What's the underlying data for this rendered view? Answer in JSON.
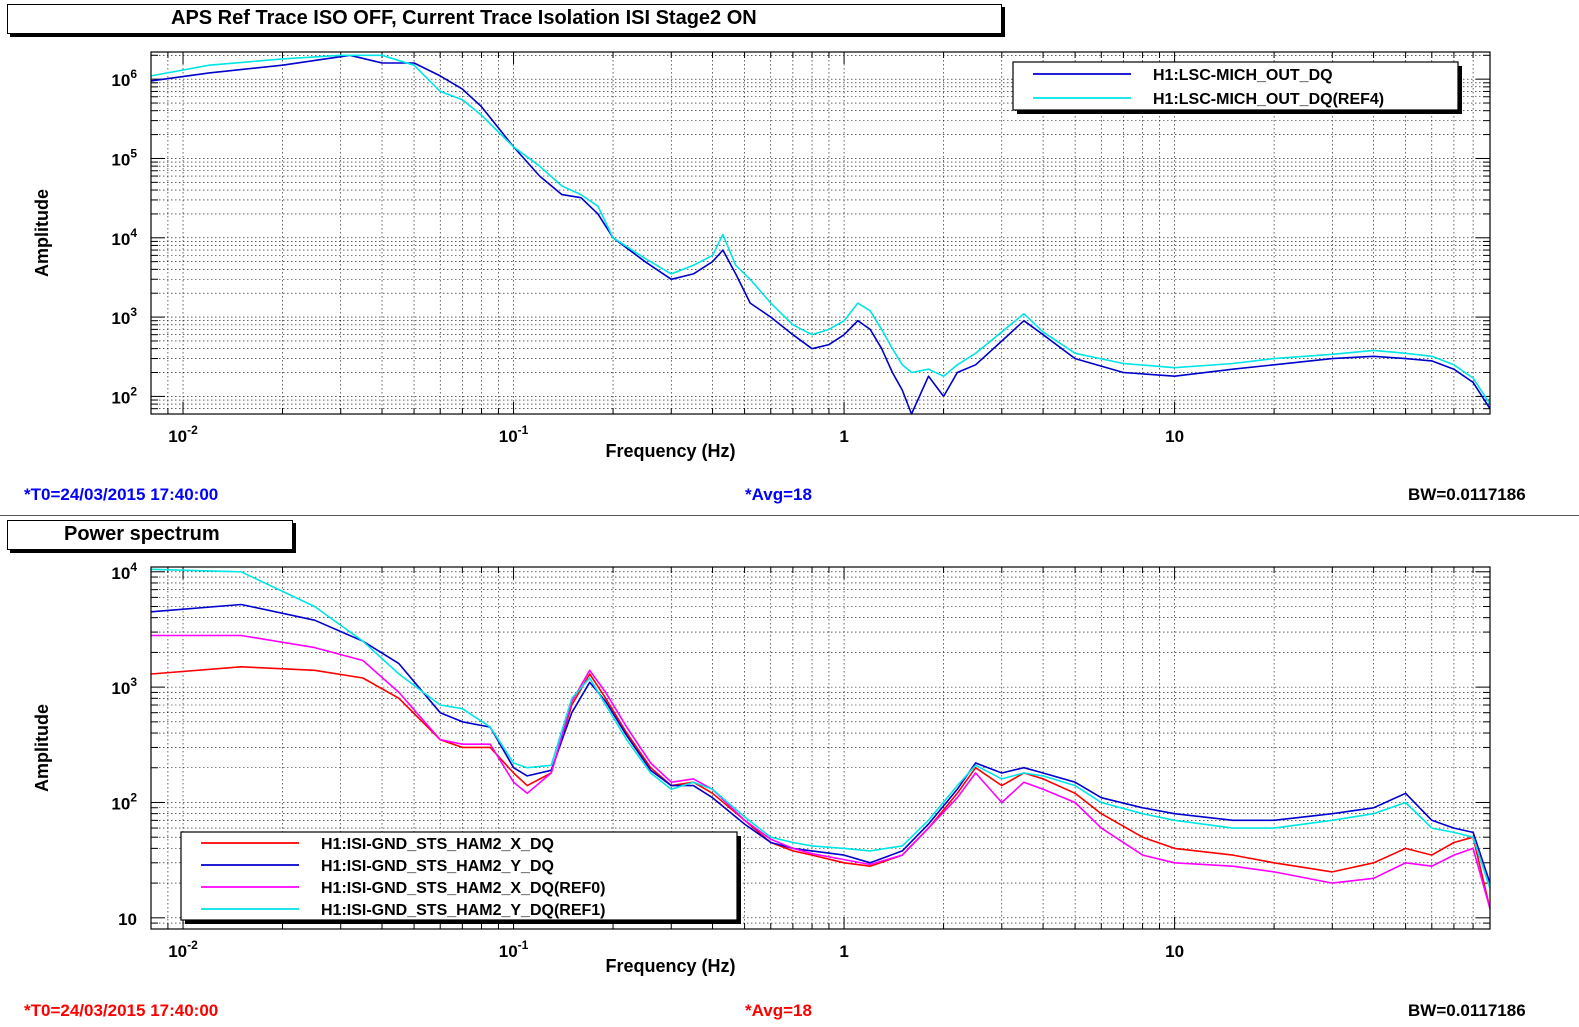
{
  "panels": [
    {
      "title": "APS Ref Trace ISO OFF, Current Trace Isolation ISI Stage2 ON",
      "info": {
        "t0": "*T0=24/03/2015 17:40:00",
        "avg": "*Avg=18",
        "bw": "BW=0.0117186",
        "color": "#0000ff"
      }
    },
    {
      "title": "Power spectrum",
      "info": {
        "t0": "*T0=24/03/2015 17:40:00",
        "avg": "*Avg=18",
        "bw": "BW=0.0117186",
        "color": "#ff0000"
      }
    }
  ],
  "chart_data": [
    {
      "type": "line",
      "title": "APS Ref Trace ISO OFF, Current Trace Isolation ISI Stage2 ON",
      "xlabel": "Frequency (Hz)",
      "ylabel": "Amplitude",
      "xscale": "log",
      "yscale": "log",
      "xlim": [
        0.008,
        90
      ],
      "ylim": [
        60,
        2200000
      ],
      "grid": true,
      "legend_position": "top-right",
      "x_ticks": [
        {
          "label": "10",
          "sup": "-2",
          "value": 0.01
        },
        {
          "label": "10",
          "sup": "-1",
          "value": 0.1
        },
        {
          "label": "1",
          "sup": "",
          "value": 1
        },
        {
          "label": "10",
          "sup": "",
          "value": 10
        }
      ],
      "y_ticks": [
        {
          "label": "10",
          "sup": "2",
          "value": 100
        },
        {
          "label": "10",
          "sup": "3",
          "value": 1000
        },
        {
          "label": "10",
          "sup": "4",
          "value": 10000
        },
        {
          "label": "10",
          "sup": "5",
          "value": 100000
        },
        {
          "label": "10",
          "sup": "6",
          "value": 1000000
        }
      ],
      "series": [
        {
          "name": "H1:LSC-MICH_OUT_DQ",
          "color": "#0000cc",
          "x": [
            0.008,
            0.012,
            0.02,
            0.032,
            0.04,
            0.05,
            0.06,
            0.07,
            0.08,
            0.1,
            0.12,
            0.14,
            0.16,
            0.18,
            0.2,
            0.25,
            0.3,
            0.35,
            0.4,
            0.43,
            0.47,
            0.52,
            0.6,
            0.7,
            0.8,
            0.9,
            1.0,
            1.1,
            1.2,
            1.3,
            1.4,
            1.5,
            1.6,
            1.8,
            2.0,
            2.2,
            2.5,
            3.0,
            3.5,
            4.0,
            5.0,
            7.0,
            10.0,
            15.0,
            20.0,
            30.0,
            40.0,
            50.0,
            60.0,
            70.0,
            80.0,
            90.0
          ],
          "y": [
            950000,
            1200000,
            1500000,
            2000000,
            1600000,
            1600000,
            1100000,
            750000,
            450000,
            140000,
            60000,
            35000,
            32000,
            20000,
            10000,
            5000,
            3000,
            3500,
            5000,
            7000,
            3500,
            1500,
            1000,
            600,
            400,
            450,
            600,
            900,
            700,
            400,
            200,
            120,
            60,
            180,
            100,
            200,
            250,
            500,
            900,
            600,
            300,
            200,
            180,
            220,
            250,
            300,
            320,
            300,
            280,
            220,
            150,
            70
          ]
        },
        {
          "name": "H1:LSC-MICH_OUT_DQ(REF4)",
          "color": "#00e5e5",
          "x": [
            0.008,
            0.012,
            0.02,
            0.03,
            0.04,
            0.05,
            0.06,
            0.07,
            0.08,
            0.1,
            0.12,
            0.14,
            0.16,
            0.18,
            0.2,
            0.25,
            0.3,
            0.35,
            0.4,
            0.43,
            0.47,
            0.52,
            0.6,
            0.7,
            0.8,
            0.9,
            1.0,
            1.1,
            1.2,
            1.3,
            1.4,
            1.5,
            1.6,
            1.8,
            2.0,
            2.2,
            2.5,
            3.0,
            3.5,
            4.0,
            5.0,
            7.0,
            10.0,
            15.0,
            20.0,
            30.0,
            40.0,
            50.0,
            60.0,
            70.0,
            80.0,
            90.0
          ],
          "y": [
            1100000,
            1500000,
            1800000,
            2000000,
            2000000,
            1500000,
            700000,
            550000,
            350000,
            140000,
            80000,
            45000,
            35000,
            25000,
            10000,
            5500,
            3500,
            4500,
            6000,
            11000,
            4500,
            3000,
            1500,
            800,
            600,
            700,
            900,
            1500,
            1200,
            700,
            400,
            250,
            200,
            220,
            180,
            250,
            350,
            650,
            1100,
            650,
            350,
            260,
            230,
            260,
            300,
            340,
            380,
            350,
            320,
            250,
            170,
            80
          ]
        }
      ]
    },
    {
      "type": "line",
      "title": "Power spectrum",
      "xlabel": "Frequency (Hz)",
      "ylabel": "Amplitude",
      "xscale": "log",
      "yscale": "log",
      "xlim": [
        0.008,
        90
      ],
      "ylim": [
        8,
        11000
      ],
      "grid": true,
      "legend_position": "bottom-left",
      "x_ticks": [
        {
          "label": "10",
          "sup": "-2",
          "value": 0.01
        },
        {
          "label": "10",
          "sup": "-1",
          "value": 0.1
        },
        {
          "label": "1",
          "sup": "",
          "value": 1
        },
        {
          "label": "10",
          "sup": "",
          "value": 10
        }
      ],
      "y_ticks": [
        {
          "label": "10",
          "sup": "",
          "value": 10
        },
        {
          "label": "10",
          "sup": "2",
          "value": 100
        },
        {
          "label": "10",
          "sup": "3",
          "value": 1000
        },
        {
          "label": "10",
          "sup": "4",
          "value": 10000
        }
      ],
      "series": [
        {
          "name": "H1:ISI-GND_STS_HAM2_X_DQ",
          "color": "#ff0000",
          "x": [
            0.008,
            0.015,
            0.025,
            0.035,
            0.045,
            0.06,
            0.07,
            0.085,
            0.1,
            0.11,
            0.13,
            0.15,
            0.17,
            0.19,
            0.22,
            0.26,
            0.3,
            0.35,
            0.4,
            0.5,
            0.6,
            0.7,
            0.8,
            1.0,
            1.2,
            1.5,
            1.8,
            2.2,
            2.5,
            3.0,
            3.5,
            4.0,
            5.0,
            6.0,
            8.0,
            10.0,
            15.0,
            20.0,
            30.0,
            40.0,
            50.0,
            60.0,
            70.0,
            80.0,
            90.0
          ],
          "y": [
            1300,
            1500,
            1400,
            1200,
            800,
            350,
            300,
            300,
            180,
            140,
            180,
            700,
            1300,
            800,
            400,
            200,
            140,
            150,
            120,
            70,
            45,
            38,
            35,
            30,
            28,
            35,
            60,
            120,
            200,
            140,
            180,
            160,
            120,
            80,
            50,
            40,
            35,
            30,
            25,
            30,
            40,
            35,
            45,
            50,
            12
          ]
        },
        {
          "name": "H1:ISI-GND_STS_HAM2_Y_DQ",
          "color": "#0000cc",
          "x": [
            0.008,
            0.015,
            0.025,
            0.035,
            0.045,
            0.06,
            0.07,
            0.085,
            0.1,
            0.11,
            0.13,
            0.15,
            0.17,
            0.19,
            0.22,
            0.26,
            0.3,
            0.35,
            0.4,
            0.5,
            0.6,
            0.7,
            0.8,
            1.0,
            1.2,
            1.5,
            1.8,
            2.2,
            2.5,
            3.0,
            3.5,
            4.0,
            5.0,
            6.0,
            8.0,
            10.0,
            15.0,
            20.0,
            30.0,
            40.0,
            50.0,
            60.0,
            70.0,
            80.0,
            90.0
          ],
          "y": [
            4500,
            5200,
            3800,
            2500,
            1600,
            600,
            500,
            450,
            200,
            170,
            190,
            600,
            1100,
            750,
            380,
            190,
            140,
            140,
            110,
            65,
            45,
            40,
            38,
            35,
            30,
            38,
            65,
            130,
            220,
            180,
            200,
            180,
            150,
            110,
            90,
            80,
            70,
            70,
            80,
            90,
            120,
            70,
            60,
            55,
            20
          ]
        },
        {
          "name": "H1:ISI-GND_STS_HAM2_X_DQ(REF0)",
          "color": "#ff00ff",
          "x": [
            0.008,
            0.015,
            0.025,
            0.035,
            0.045,
            0.06,
            0.07,
            0.085,
            0.1,
            0.11,
            0.13,
            0.15,
            0.17,
            0.19,
            0.22,
            0.26,
            0.3,
            0.35,
            0.4,
            0.5,
            0.6,
            0.7,
            0.8,
            1.0,
            1.2,
            1.5,
            1.8,
            2.2,
            2.5,
            3.0,
            3.5,
            4.0,
            5.0,
            6.0,
            8.0,
            10.0,
            15.0,
            20.0,
            30.0,
            40.0,
            50.0,
            60.0,
            70.0,
            80.0,
            90.0
          ],
          "y": [
            2800,
            2800,
            2200,
            1700,
            900,
            350,
            320,
            320,
            150,
            120,
            180,
            750,
            1400,
            900,
            450,
            220,
            150,
            160,
            130,
            70,
            48,
            40,
            36,
            32,
            29,
            35,
            60,
            110,
            180,
            100,
            150,
            130,
            100,
            60,
            35,
            30,
            28,
            25,
            20,
            22,
            30,
            28,
            35,
            40,
            12
          ]
        },
        {
          "name": "H1:ISI-GND_STS_HAM2_Y_DQ(REF1)",
          "color": "#00e5e5",
          "x": [
            0.008,
            0.015,
            0.025,
            0.035,
            0.045,
            0.06,
            0.07,
            0.085,
            0.1,
            0.11,
            0.13,
            0.15,
            0.17,
            0.19,
            0.22,
            0.26,
            0.3,
            0.35,
            0.4,
            0.5,
            0.6,
            0.7,
            0.8,
            1.0,
            1.2,
            1.5,
            1.8,
            2.2,
            2.5,
            3.0,
            3.5,
            4.0,
            5.0,
            6.0,
            8.0,
            10.0,
            15.0,
            20.0,
            30.0,
            40.0,
            50.0,
            60.0,
            70.0,
            80.0,
            90.0
          ],
          "y": [
            10500,
            10000,
            5000,
            2500,
            1300,
            700,
            650,
            450,
            220,
            200,
            210,
            800,
            1200,
            700,
            350,
            180,
            130,
            150,
            130,
            75,
            50,
            45,
            42,
            40,
            38,
            42,
            70,
            140,
            210,
            160,
            180,
            170,
            140,
            100,
            80,
            70,
            60,
            60,
            70,
            80,
            100,
            60,
            55,
            50,
            18
          ]
        }
      ]
    }
  ]
}
